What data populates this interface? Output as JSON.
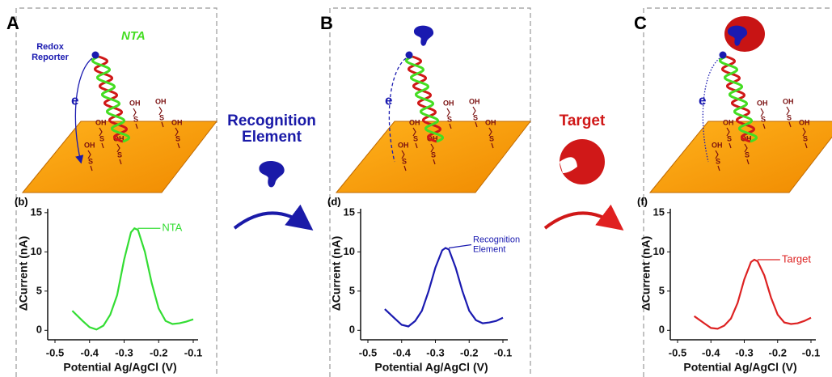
{
  "panels": [
    {
      "label": "A",
      "electron": "e",
      "redox_reporter": [
        "Redox",
        "Reporter"
      ],
      "strand": "NTA",
      "oh_labels": [
        "OH",
        "OH",
        "OH",
        "OH",
        "OH",
        "OH"
      ],
      "s_labels": [
        "S",
        "S",
        "S",
        "S",
        "S",
        "S"
      ]
    },
    {
      "label": "B",
      "electron": "e",
      "oh_labels": [
        "OH",
        "OH",
        "OH",
        "OH",
        "OH",
        "OH"
      ],
      "s_labels": [
        "S",
        "S",
        "S",
        "S",
        "S",
        "S"
      ]
    },
    {
      "label": "C",
      "electron": "e",
      "oh_labels": [
        "OH",
        "OH",
        "OH",
        "OH",
        "OH",
        "OH"
      ],
      "s_labels": [
        "S",
        "S",
        "S",
        "S",
        "S",
        "S"
      ]
    }
  ],
  "steps": [
    {
      "label": [
        "Recognition",
        "Element"
      ],
      "color": "#1a1aa8"
    },
    {
      "label": [
        "Target"
      ],
      "color": "#d01818"
    }
  ],
  "chart_data": [
    {
      "type": "line",
      "panel_label": "(b)",
      "y_label": "ΔCurrent (nA)",
      "x_label": "Potential Ag/AgCl (V)",
      "annotation": [
        "NTA"
      ],
      "color": "#33dd33",
      "x": [
        -0.45,
        -0.42,
        -0.4,
        -0.38,
        -0.36,
        -0.34,
        -0.32,
        -0.3,
        -0.28,
        -0.27,
        -0.26,
        -0.24,
        -0.22,
        -0.2,
        -0.18,
        -0.16,
        -0.14,
        -0.12,
        -0.1
      ],
      "values": [
        2.5,
        1.2,
        0.4,
        0.1,
        0.6,
        2,
        4.5,
        9,
        12.5,
        13,
        12.8,
        10,
        6,
        2.8,
        1.2,
        0.8,
        0.9,
        1.1,
        1.4
      ],
      "xlim": [
        -0.5,
        -0.1
      ],
      "xticks": [
        -0.5,
        -0.4,
        -0.3,
        -0.2,
        -0.1
      ],
      "ylim": [
        -1,
        15.5
      ],
      "yticks": [
        0,
        5,
        10,
        15
      ]
    },
    {
      "type": "line",
      "panel_label": "(d)",
      "y_label": "ΔCurrent (nA)",
      "x_label": "Potential Ag/AgCl (V)",
      "annotation": [
        "Recognition",
        "Element"
      ],
      "color": "#1a1ab0",
      "x": [
        -0.45,
        -0.42,
        -0.4,
        -0.38,
        -0.36,
        -0.34,
        -0.32,
        -0.3,
        -0.28,
        -0.27,
        -0.26,
        -0.24,
        -0.22,
        -0.2,
        -0.18,
        -0.16,
        -0.14,
        -0.12,
        -0.1
      ],
      "values": [
        2.7,
        1.5,
        0.7,
        0.5,
        1.2,
        2.5,
        5,
        8,
        10.2,
        10.5,
        10.3,
        8,
        5,
        2.5,
        1.3,
        0.9,
        1,
        1.2,
        1.6
      ],
      "xlim": [
        -0.5,
        -0.1
      ],
      "xticks": [
        -0.5,
        -0.4,
        -0.3,
        -0.2,
        -0.1
      ],
      "ylim": [
        -1,
        15.5
      ],
      "yticks": [
        0,
        5,
        10,
        15
      ]
    },
    {
      "type": "line",
      "panel_label": "(f)",
      "y_label": "ΔCurrent (nA)",
      "x_label": "Potential Ag/AgCl (V)",
      "annotation": [
        "Target"
      ],
      "color": "#dd2222",
      "x": [
        -0.45,
        -0.42,
        -0.4,
        -0.38,
        -0.36,
        -0.34,
        -0.32,
        -0.3,
        -0.28,
        -0.27,
        -0.26,
        -0.24,
        -0.22,
        -0.2,
        -0.18,
        -0.16,
        -0.14,
        -0.12,
        -0.1
      ],
      "values": [
        1.8,
        0.9,
        0.3,
        0.2,
        0.6,
        1.5,
        3.5,
        6.5,
        8.7,
        9,
        8.8,
        7,
        4.2,
        2,
        1,
        0.8,
        0.9,
        1.2,
        1.6
      ],
      "xlim": [
        -0.5,
        -0.1
      ],
      "xticks": [
        -0.5,
        -0.4,
        -0.3,
        -0.2,
        -0.1
      ],
      "ylim": [
        -1,
        15.5
      ],
      "yticks": [
        0,
        5,
        10,
        15
      ]
    }
  ]
}
